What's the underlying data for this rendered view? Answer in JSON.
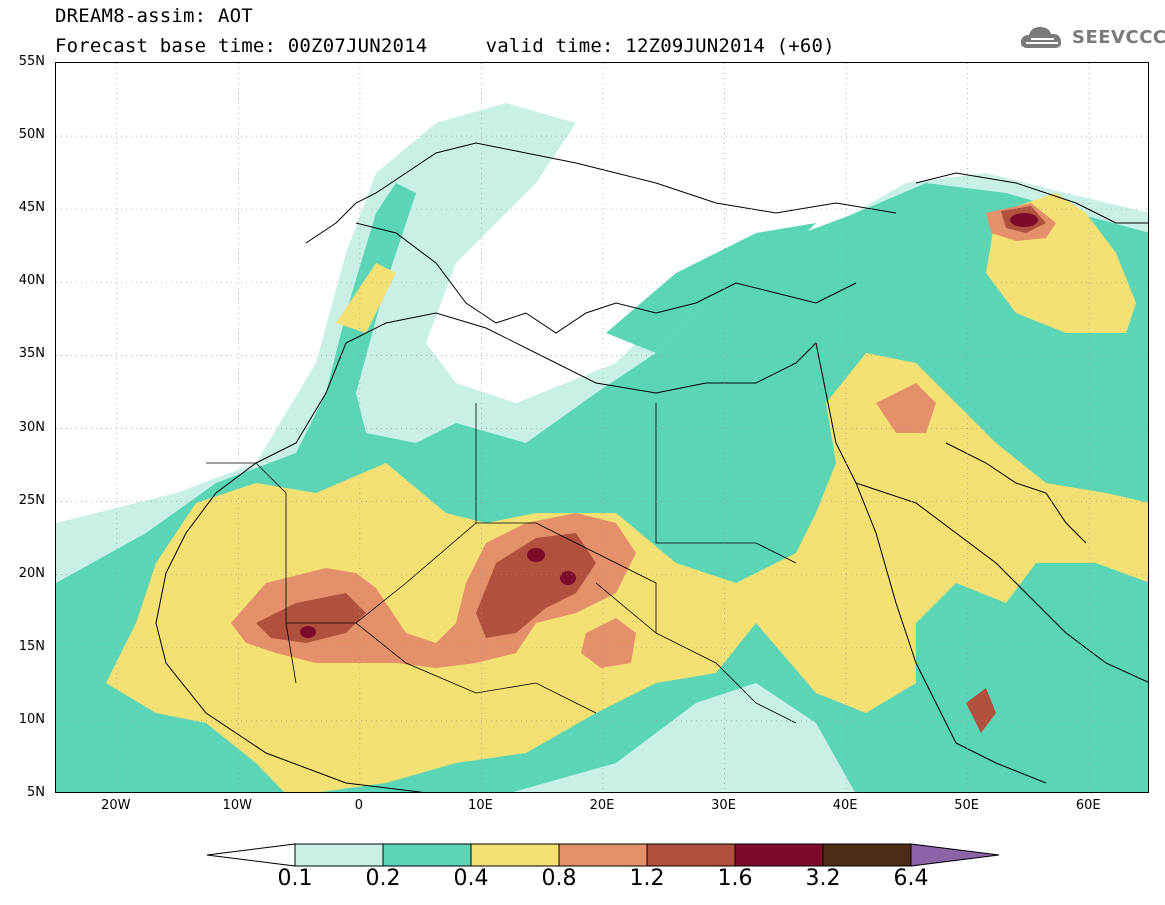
{
  "header": {
    "title_line1": "DREAM8-assim: AOT",
    "title_line2": "Forecast base time: 00Z07JUN2014     valid time: 12Z09JUN2014 (+60)"
  },
  "logo": {
    "text": "SEEVCCC",
    "icon": "cloud-icon"
  },
  "map": {
    "lat_labels": [
      "55N",
      "50N",
      "45N",
      "40N",
      "35N",
      "30N",
      "25N",
      "20N",
      "15N",
      "10N",
      "5N"
    ],
    "lon_labels": [
      "20W",
      "10W",
      "0",
      "10E",
      "20E",
      "30E",
      "40E",
      "50E",
      "60E"
    ],
    "grid": true,
    "extent_lat": [
      5,
      55
    ],
    "extent_lon": [
      -25,
      65
    ]
  },
  "colorbar": {
    "levels": [
      "0.1",
      "0.2",
      "0.4",
      "0.8",
      "1.2",
      "1.6",
      "3.2",
      "6.4"
    ],
    "colors": [
      "#ffffff",
      "#c8f0e6",
      "#5ad6b6",
      "#f5e073",
      "#e4906a",
      "#b2503e",
      "#7d0a2a",
      "#4b2b16",
      "#8c62a8"
    ]
  }
}
